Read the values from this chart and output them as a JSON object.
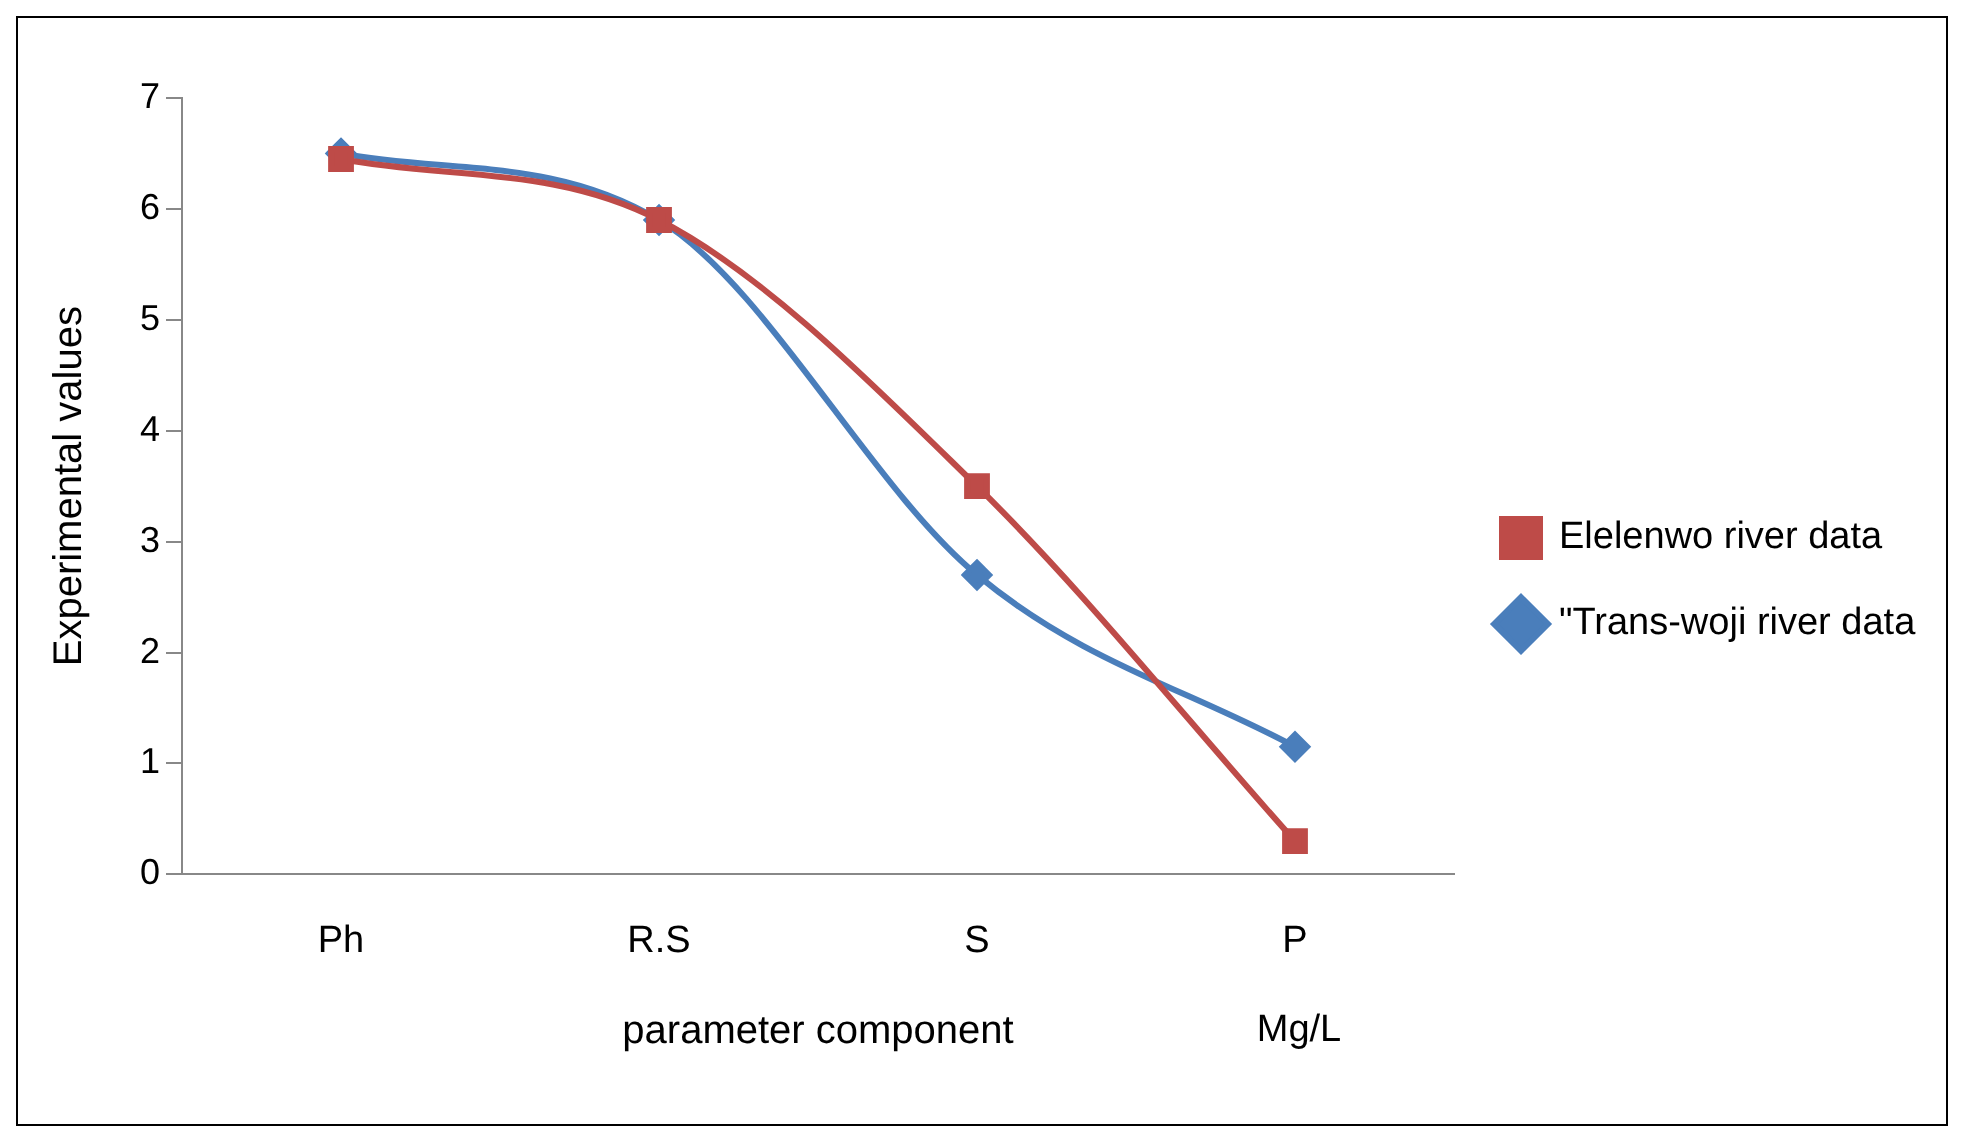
{
  "chart_data": {
    "type": "line",
    "xlabel": "parameter component",
    "ylabel": "Experimental values",
    "annotations": [
      "Mg/L"
    ],
    "categories": [
      "Ph",
      "R.S",
      "S",
      "P"
    ],
    "series": [
      {
        "name": "\"Trans-woji river data",
        "color": "#4a7ebb",
        "values": [
          6.5,
          5.9,
          2.7,
          1.15
        ],
        "marker": "diamond"
      },
      {
        "name": "Elelenwo river data",
        "color": "#be4b48",
        "values": [
          6.45,
          5.9,
          3.5,
          0.3
        ],
        "marker": "square"
      }
    ],
    "ylim": [
      0,
      7
    ],
    "yticks": [
      0,
      1,
      2,
      3,
      4,
      5,
      6,
      7
    ],
    "grid": false,
    "legend": "right"
  }
}
